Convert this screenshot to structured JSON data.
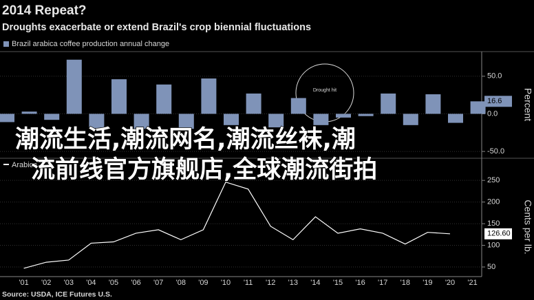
{
  "header": {
    "title": "2014 Repeat?",
    "subtitle": "Droughts exacerbate or extend Brazil's crop biennial fluctuations"
  },
  "source": "Source: USDA, ICE Futures U.S.",
  "overlay_text": [
    "潮流生活,潮流网名,潮流丝袜,潮",
    "流前线官方旗舰店,全球潮流街拍"
  ],
  "chart_data": [
    {
      "type": "bar",
      "legend": "Brazil arabica coffee production annual change",
      "axis_label": "Percent",
      "color": "#7f93b8",
      "categories": [
        null,
        "'01",
        "'02",
        "'03",
        "'04",
        "'05",
        "'06",
        "'07",
        "'08",
        "'09",
        "'10",
        "'11",
        "'12",
        "'13",
        "'14",
        "'15",
        "'16",
        "'17",
        "'18",
        "'19",
        "'20",
        "'21"
      ],
      "values": [
        -11,
        3,
        -8,
        72,
        -20,
        46,
        -20,
        39,
        -20,
        47,
        -15,
        27,
        -18,
        21,
        -15,
        -5,
        -3,
        27,
        -15,
        26,
        -12,
        16.6
      ],
      "value_labels": [
        null,
        null,
        null,
        null,
        null,
        null,
        null,
        null,
        null,
        null,
        null,
        null,
        null,
        null,
        null,
        null,
        null,
        null,
        null,
        null,
        null,
        "16.6"
      ],
      "annotation": "Drought hit",
      "ylim": [
        -60,
        80
      ],
      "yticks": [
        {
          "value": 50,
          "label": "50.0"
        },
        {
          "value": 0,
          "label": "0.0"
        },
        {
          "value": -50,
          "label": "-50.0"
        }
      ]
    },
    {
      "type": "line",
      "legend": "Arabica",
      "axis_label": "Cents per lb.",
      "color": "#ffffff",
      "values": [
        null,
        47,
        61,
        66,
        105,
        108,
        128,
        136,
        113,
        136,
        246,
        230,
        144,
        113,
        166,
        128,
        138,
        128,
        103,
        130,
        126.6,
        null
      ],
      "value_labels": [
        null,
        null,
        null,
        null,
        null,
        null,
        null,
        null,
        null,
        null,
        null,
        null,
        null,
        null,
        null,
        null,
        null,
        null,
        null,
        null,
        "126.60",
        null
      ],
      "ylim": [
        30,
        290
      ],
      "yticks": [
        250,
        200,
        150,
        100,
        50
      ]
    }
  ]
}
